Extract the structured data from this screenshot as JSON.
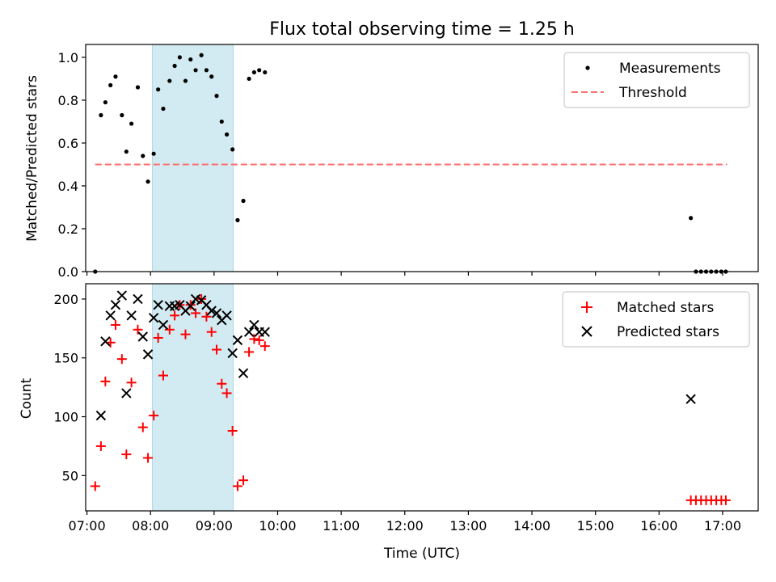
{
  "chart_data": [
    {
      "type": "scatter",
      "title": "Flux total observing time = 1.25 h",
      "xlabel": "",
      "ylabel": "Matched/Predicted stars",
      "xlim": [
        6.98,
        17.56
      ],
      "ylim": [
        0,
        1.06
      ],
      "yticks": [
        0.0,
        0.2,
        0.4,
        0.6,
        0.8,
        1.0
      ],
      "ytick_labels": [
        "0.0",
        "0.2",
        "0.4",
        "0.6",
        "0.8",
        "1.0"
      ],
      "shaded_interval": [
        8.03,
        9.3
      ],
      "shaded_color": "#add8e6",
      "threshold": {
        "name": "Threshold",
        "value": 0.5,
        "x_range": [
          7.13,
          17.07
        ],
        "color": "#ff7070"
      },
      "legend_position": "top-right",
      "series": [
        {
          "name": "Measurements",
          "color": "#000000",
          "x": [
            7.13,
            7.22,
            7.29,
            7.37,
            7.45,
            7.55,
            7.62,
            7.7,
            7.8,
            7.88,
            7.96,
            8.05,
            8.12,
            8.2,
            8.3,
            8.38,
            8.46,
            8.55,
            8.63,
            8.71,
            8.8,
            8.88,
            8.96,
            9.04,
            9.12,
            9.2,
            9.29,
            9.37,
            9.46,
            9.55,
            9.63,
            9.71,
            9.8,
            16.5,
            16.58,
            16.66,
            16.74,
            16.82,
            16.9,
            16.98,
            17.05
          ],
          "y": [
            0.0,
            0.73,
            0.79,
            0.87,
            0.91,
            0.73,
            0.56,
            0.69,
            0.86,
            0.54,
            0.42,
            0.55,
            0.85,
            0.76,
            0.89,
            0.96,
            1.0,
            0.89,
            0.99,
            0.94,
            1.01,
            0.94,
            0.91,
            0.82,
            0.7,
            0.64,
            0.57,
            0.24,
            0.33,
            0.9,
            0.93,
            0.94,
            0.93,
            0.25,
            0.0,
            0.0,
            0.0,
            0.0,
            0.0,
            0.0,
            0.0
          ]
        }
      ]
    },
    {
      "type": "scatter",
      "title": "",
      "xlabel": "Time (UTC)",
      "ylabel": "Count",
      "xlim": [
        6.98,
        17.56
      ],
      "ylim": [
        20,
        213
      ],
      "yticks": [
        50,
        100,
        150,
        200
      ],
      "ytick_labels": [
        "50",
        "100",
        "150",
        "200"
      ],
      "xticks": [
        7,
        8,
        9,
        10,
        11,
        12,
        13,
        14,
        15,
        16,
        17
      ],
      "xtick_labels": [
        "07:00",
        "08:00",
        "09:00",
        "10:00",
        "11:00",
        "12:00",
        "13:00",
        "14:00",
        "15:00",
        "16:00",
        "17:00"
      ],
      "shaded_interval": [
        8.03,
        9.3
      ],
      "shaded_color": "#add8e6",
      "legend_position": "top-right",
      "series": [
        {
          "name": "Matched stars",
          "marker": "plus",
          "color": "#ff0000",
          "x": [
            7.13,
            7.22,
            7.29,
            7.37,
            7.45,
            7.55,
            7.62,
            7.7,
            7.8,
            7.88,
            7.96,
            8.05,
            8.12,
            8.2,
            8.3,
            8.38,
            8.46,
            8.55,
            8.63,
            8.71,
            8.8,
            8.88,
            8.96,
            9.04,
            9.12,
            9.2,
            9.29,
            9.37,
            9.46,
            9.55,
            9.63,
            9.71,
            9.8,
            16.5,
            16.58,
            16.66,
            16.74,
            16.82,
            16.9,
            16.98,
            17.05
          ],
          "y": [
            41,
            75,
            130,
            163,
            178,
            149,
            68,
            129,
            174,
            91,
            65,
            101,
            167,
            135,
            174,
            186,
            195,
            170,
            195,
            188,
            200,
            185,
            172,
            157,
            128,
            120,
            88,
            41,
            46,
            155,
            166,
            165,
            160,
            29,
            29,
            29,
            29,
            29,
            29,
            29,
            29
          ]
        },
        {
          "name": "Predicted stars",
          "marker": "x",
          "color": "#000000",
          "x": [
            7.22,
            7.29,
            7.37,
            7.45,
            7.55,
            7.62,
            7.7,
            7.8,
            7.88,
            7.96,
            8.05,
            8.12,
            8.2,
            8.3,
            8.38,
            8.46,
            8.55,
            8.63,
            8.71,
            8.8,
            8.88,
            8.96,
            9.04,
            9.12,
            9.2,
            9.29,
            9.37,
            9.46,
            9.55,
            9.63,
            9.71,
            9.8,
            16.5
          ],
          "y": [
            101,
            164,
            186,
            195,
            203,
            120,
            186,
            200,
            168,
            153,
            184,
            195,
            178,
            194,
            194,
            195,
            190,
            194,
            200,
            199,
            195,
            190,
            188,
            182,
            186,
            154,
            165,
            137,
            172,
            178,
            172,
            172,
            115
          ]
        }
      ]
    }
  ]
}
